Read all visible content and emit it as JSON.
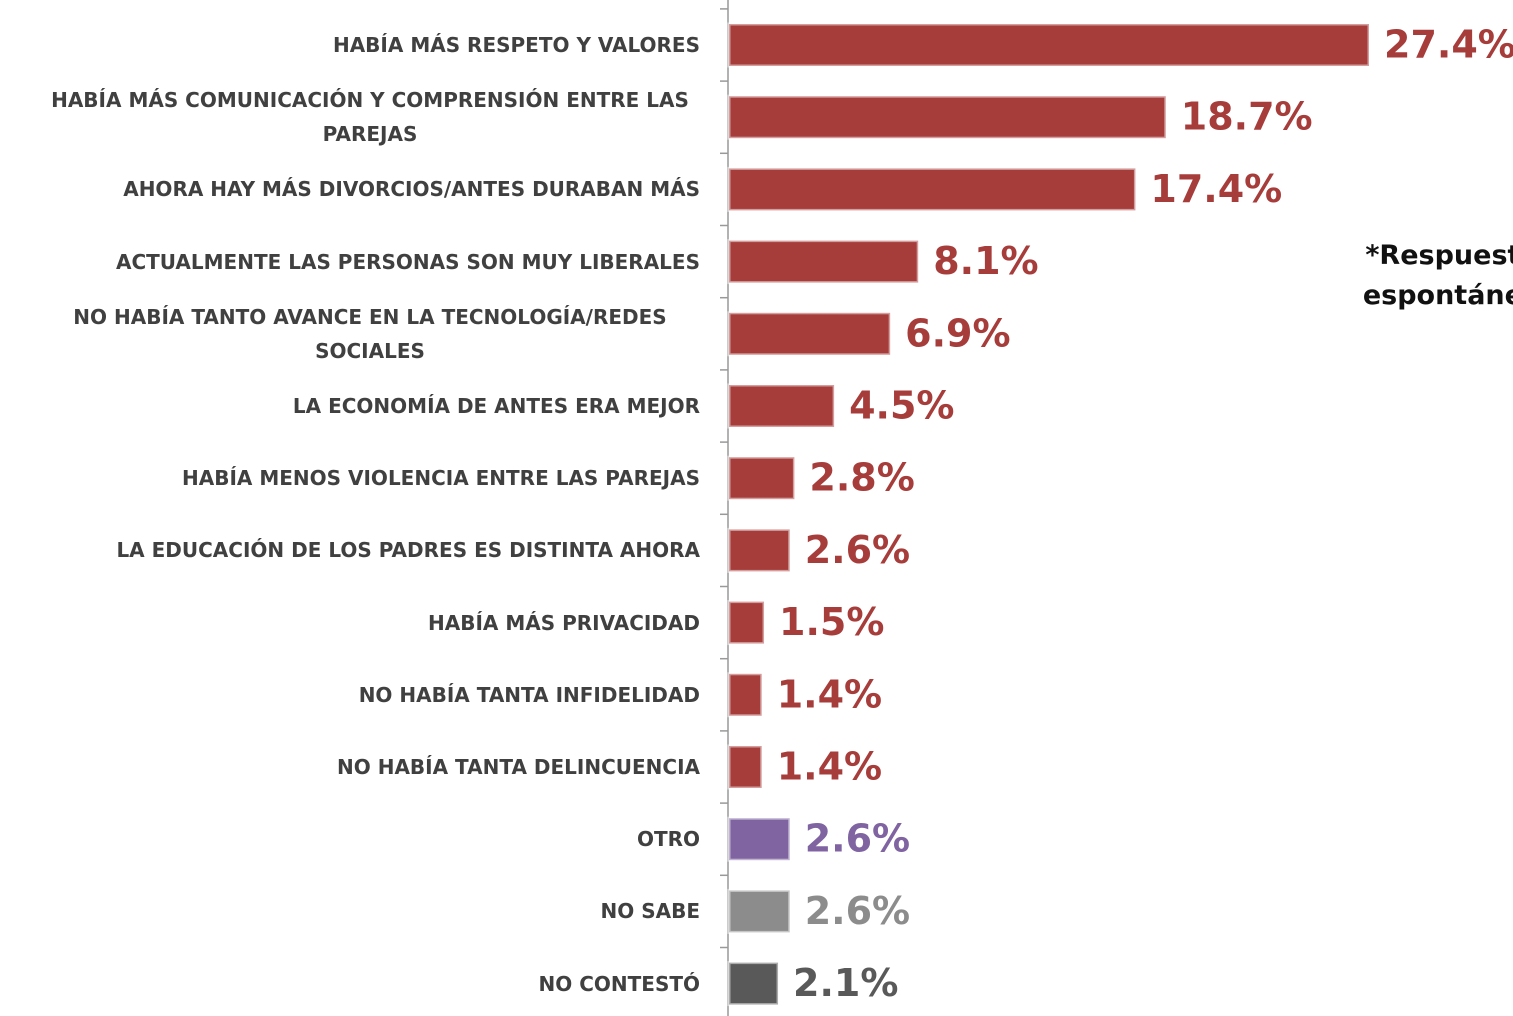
{
  "chart_data": {
    "type": "hbar",
    "categories": [
      "HABÍA MÁS RESPETO Y VALORES",
      "HABÍA MÁS COMUNICACIÓN Y COMPRENSIÓN ENTRE LAS PAREJAS",
      "AHORA HAY MÁS DIVORCIOS/ANTES DURABAN MÁS",
      "ACTUALMENTE LAS PERSONAS SON MUY LIBERALES",
      "NO HABÍA TANTO AVANCE EN LA TECNOLOGÍA/REDES SOCIALES",
      "LA ECONOMÍA DE ANTES ERA MEJOR",
      "HABÍA MENOS VIOLENCIA ENTRE LAS PAREJAS",
      "LA EDUCACIÓN DE LOS PADRES ES DISTINTA AHORA",
      "HABÍA MÁS PRIVACIDAD",
      "NO HABÍA TANTA INFIDELIDAD",
      "NO HABÍA TANTA DELINCUENCIA",
      "OTRO",
      "NO SABE",
      "NO CONTESTÓ"
    ],
    "values": [
      27.4,
      18.7,
      17.4,
      8.1,
      6.9,
      4.5,
      2.8,
      2.6,
      1.5,
      1.4,
      1.4,
      2.6,
      2.6,
      2.1
    ],
    "value_labels": [
      "27.4%",
      "18.7%",
      "17.4%",
      "8.1%",
      "6.9%",
      "4.5%",
      "2.8%",
      "2.6%",
      "1.5%",
      "1.4%",
      "1.4%",
      "2.6%",
      "2.6%",
      "2.1%"
    ],
    "colors": [
      "#a73d3b",
      "#a73d3b",
      "#a73d3b",
      "#a73d3b",
      "#a73d3b",
      "#a73d3b",
      "#a73d3b",
      "#a73d3b",
      "#a73d3b",
      "#a73d3b",
      "#a73d3b",
      "#8064a2",
      "#8c8c8c",
      "#595959"
    ],
    "annotation": "*Respuesta espontánea"
  }
}
